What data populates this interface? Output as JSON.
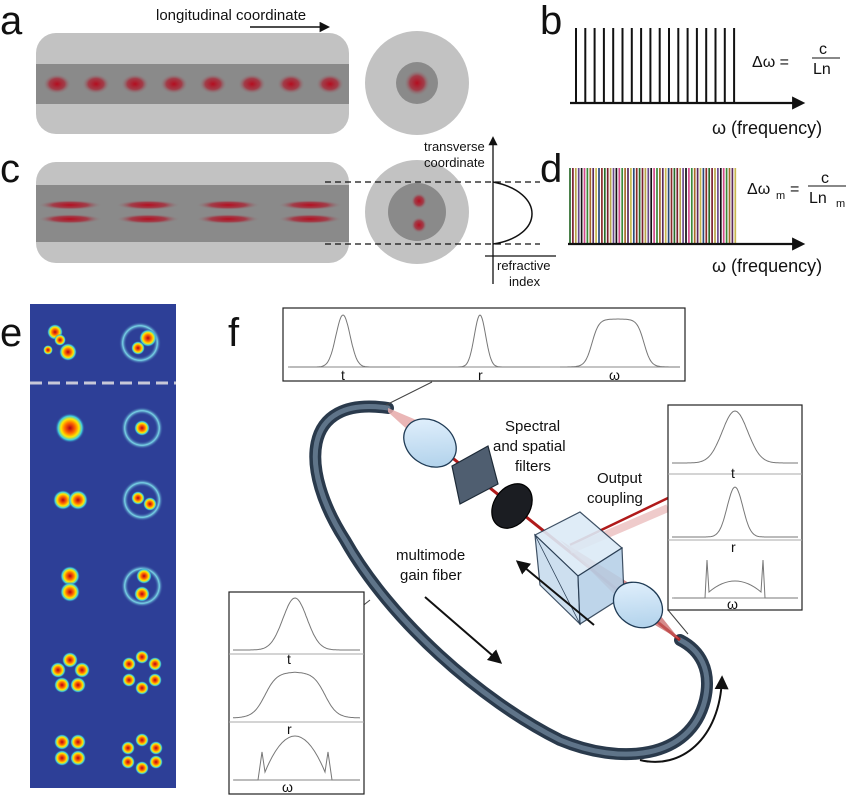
{
  "panels": {
    "a": "a",
    "b": "b",
    "c": "c",
    "d": "d",
    "e": "e",
    "f": "f"
  },
  "a": {
    "axis_label": "longitudinal coordinate"
  },
  "b": {
    "eq_left": "Δω =",
    "eq_num": "c",
    "eq_den": "Ln",
    "axis": "ω (frequency)"
  },
  "c": {
    "transverse_1": "transverse",
    "transverse_2": "coordinate",
    "refr_1": "refractive",
    "refr_2": "index"
  },
  "d": {
    "eq_left": "Δω",
    "eq_left_sub": "m",
    "eq_eq": "=",
    "eq_num": "c",
    "eq_den": "Ln",
    "eq_den_sub": "m",
    "axis": "ω (frequency)"
  },
  "f": {
    "top_inset": {
      "t": "t",
      "r": "r",
      "w": "ω"
    },
    "right_inset": {
      "t": "t",
      "r": "r",
      "w": "ω"
    },
    "left_inset": {
      "t": "t",
      "r": "r",
      "w": "ω"
    },
    "filters_1": "Spectral",
    "filters_2": "and spatial",
    "filters_3": "filters",
    "output_1": "Output",
    "output_2": "coupling",
    "gain_1": "multimode",
    "gain_2": "gain fiber"
  },
  "colors": {
    "cladding": "#c2c2c2",
    "core": "#8a8a8a",
    "mode": "#b01020",
    "e_bg": "#2d3f97",
    "fiber": "#3d4f63"
  }
}
